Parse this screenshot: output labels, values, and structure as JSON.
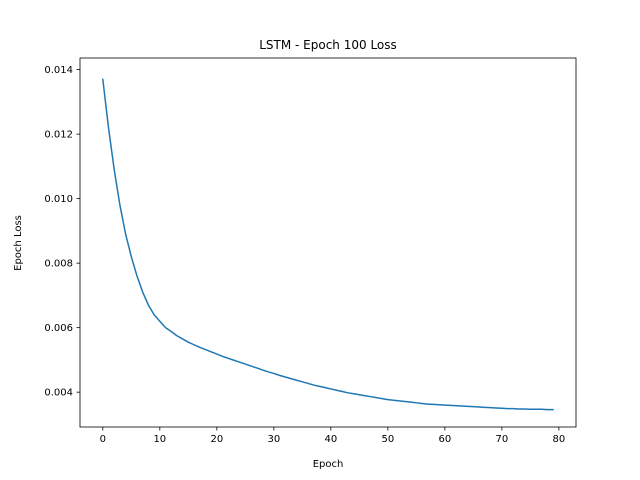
{
  "chart_data": {
    "type": "line",
    "title": "LSTM - Epoch 100 Loss",
    "xlabel": "Epoch",
    "ylabel": "Epoch Loss",
    "xlim": [
      -4,
      83
    ],
    "ylim": [
      0.00292,
      0.01436
    ],
    "xticks": [
      0,
      10,
      20,
      30,
      40,
      50,
      60,
      70,
      80
    ],
    "yticks": [
      0.004,
      0.006,
      0.008,
      0.01,
      0.012,
      0.014
    ],
    "ytick_labels": [
      "0.004",
      "0.006",
      "0.008",
      "0.010",
      "0.012",
      "0.014"
    ],
    "grid": false,
    "color": "#1f77b4",
    "series": [
      {
        "x": [
          0,
          1,
          2,
          3,
          4,
          5,
          6,
          7,
          8,
          9,
          10,
          11,
          12,
          13,
          14,
          15,
          16,
          17,
          18,
          19,
          20,
          21,
          22,
          23,
          24,
          25,
          26,
          27,
          28,
          29,
          30,
          31,
          32,
          33,
          34,
          35,
          36,
          37,
          38,
          39,
          40,
          41,
          42,
          43,
          44,
          45,
          46,
          47,
          48,
          49,
          50,
          51,
          52,
          53,
          54,
          55,
          56,
          57,
          58,
          59,
          60,
          61,
          62,
          63,
          64,
          65,
          66,
          67,
          68,
          69,
          70,
          71,
          72,
          73,
          74,
          75,
          76,
          77,
          78,
          79
        ],
        "y": [
          0.0137,
          0.0122,
          0.0109,
          0.0098,
          0.0089,
          0.0082,
          0.0076,
          0.0071,
          0.0067,
          0.0064,
          0.0062,
          0.006,
          0.00588,
          0.00575,
          0.00565,
          0.00555,
          0.00547,
          0.00539,
          0.00532,
          0.00525,
          0.00518,
          0.00511,
          0.00505,
          0.00499,
          0.00493,
          0.00487,
          0.00481,
          0.00475,
          0.00469,
          0.00463,
          0.00458,
          0.00452,
          0.00447,
          0.00442,
          0.00437,
          0.00432,
          0.00427,
          0.00422,
          0.00418,
          0.00414,
          0.0041,
          0.00406,
          0.00402,
          0.00398,
          0.00395,
          0.00392,
          0.00389,
          0.00386,
          0.00383,
          0.0038,
          0.00377,
          0.00375,
          0.00373,
          0.00371,
          0.00369,
          0.00367,
          0.00365,
          0.00363,
          0.00362,
          0.00361,
          0.0036,
          0.00359,
          0.00358,
          0.00357,
          0.00356,
          0.00355,
          0.00354,
          0.00353,
          0.00352,
          0.00351,
          0.0035,
          0.00349,
          0.00349,
          0.00348,
          0.00348,
          0.00347,
          0.00347,
          0.00347,
          0.00346,
          0.00346
        ]
      }
    ]
  }
}
